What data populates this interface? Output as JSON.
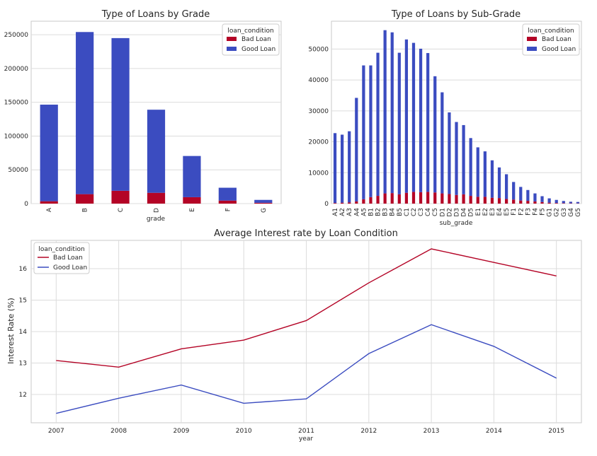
{
  "colors": {
    "bad": "#b40426",
    "good": "#3b4cc0",
    "grid": "#dcdcdc",
    "frame": "#c9c9c9"
  },
  "chart_data": [
    {
      "id": "grade",
      "type": "bar",
      "stacked": true,
      "title": "Type of Loans by Grade",
      "xlabel": "grade",
      "ylabel": "",
      "categories": [
        "A",
        "B",
        "C",
        "D",
        "E",
        "F",
        "G"
      ],
      "series": [
        {
          "name": "Bad Loan",
          "values": [
            3500,
            14000,
            19000,
            16000,
            9500,
            4500,
            1200
          ]
        },
        {
          "name": "Good Loan",
          "values": [
            143000,
            240000,
            226000,
            123000,
            61000,
            19000,
            4300
          ]
        }
      ],
      "ylim": [
        0,
        270000
      ],
      "yticks": [
        0,
        50000,
        100000,
        150000,
        200000,
        250000
      ],
      "legend": {
        "title": "loan_condition",
        "position": "top-right"
      }
    },
    {
      "id": "subgrade",
      "type": "bar",
      "stacked": true,
      "title": "Type of Loans by Sub-Grade",
      "xlabel": "sub_grade",
      "ylabel": "",
      "categories": [
        "A1",
        "A2",
        "A3",
        "A4",
        "A5",
        "B1",
        "B2",
        "B3",
        "B4",
        "B5",
        "C1",
        "C2",
        "C3",
        "C4",
        "C5",
        "D1",
        "D2",
        "D3",
        "D4",
        "D5",
        "E1",
        "E2",
        "E3",
        "E4",
        "E5",
        "F1",
        "F2",
        "F3",
        "F4",
        "F5",
        "G1",
        "G2",
        "G3",
        "G4",
        "G5"
      ],
      "series": [
        {
          "name": "Bad Loan",
          "values": [
            200,
            300,
            400,
            700,
            1400,
            2100,
            2500,
            3300,
            3400,
            3000,
            3500,
            3800,
            3700,
            3800,
            3600,
            3300,
            3100,
            2800,
            3000,
            2500,
            2200,
            2200,
            1900,
            1800,
            1500,
            1300,
            1000,
            900,
            700,
            500,
            300,
            200,
            150,
            100,
            80
          ]
        },
        {
          "name": "Good Loan",
          "values": [
            22600,
            22000,
            23000,
            33500,
            43300,
            42600,
            46300,
            52800,
            52000,
            45800,
            49600,
            48200,
            46400,
            44900,
            37600,
            32700,
            26400,
            23600,
            22400,
            18700,
            16000,
            14700,
            12100,
            9900,
            8000,
            5700,
            4400,
            3500,
            2600,
            1900,
            1400,
            1000,
            700,
            500,
            450
          ]
        }
      ],
      "ylim": [
        0,
        59000
      ],
      "yticks": [
        0,
        10000,
        20000,
        30000,
        40000,
        50000
      ],
      "legend": {
        "title": "loan_condition",
        "position": "top-right"
      }
    },
    {
      "id": "interest",
      "type": "line",
      "title": "Average Interest rate by Loan Condition",
      "xlabel": "year",
      "ylabel": "Interest Rate (%)",
      "x": [
        2007,
        2008,
        2009,
        2010,
        2011,
        2012,
        2013,
        2014,
        2015
      ],
      "series": [
        {
          "name": "Bad Loan",
          "values": [
            13.08,
            12.87,
            13.45,
            13.73,
            14.35,
            15.55,
            16.63,
            16.2,
            15.77
          ]
        },
        {
          "name": "Good Loan",
          "values": [
            11.4,
            11.88,
            12.3,
            11.72,
            11.86,
            13.3,
            14.22,
            13.53,
            12.52
          ]
        }
      ],
      "xlim": [
        2006.6,
        2015.4
      ],
      "ylim": [
        11.1,
        16.9
      ],
      "yticks": [
        12,
        13,
        14,
        15,
        16
      ],
      "legend": {
        "title": "loan_condition",
        "position": "top-left"
      }
    }
  ]
}
